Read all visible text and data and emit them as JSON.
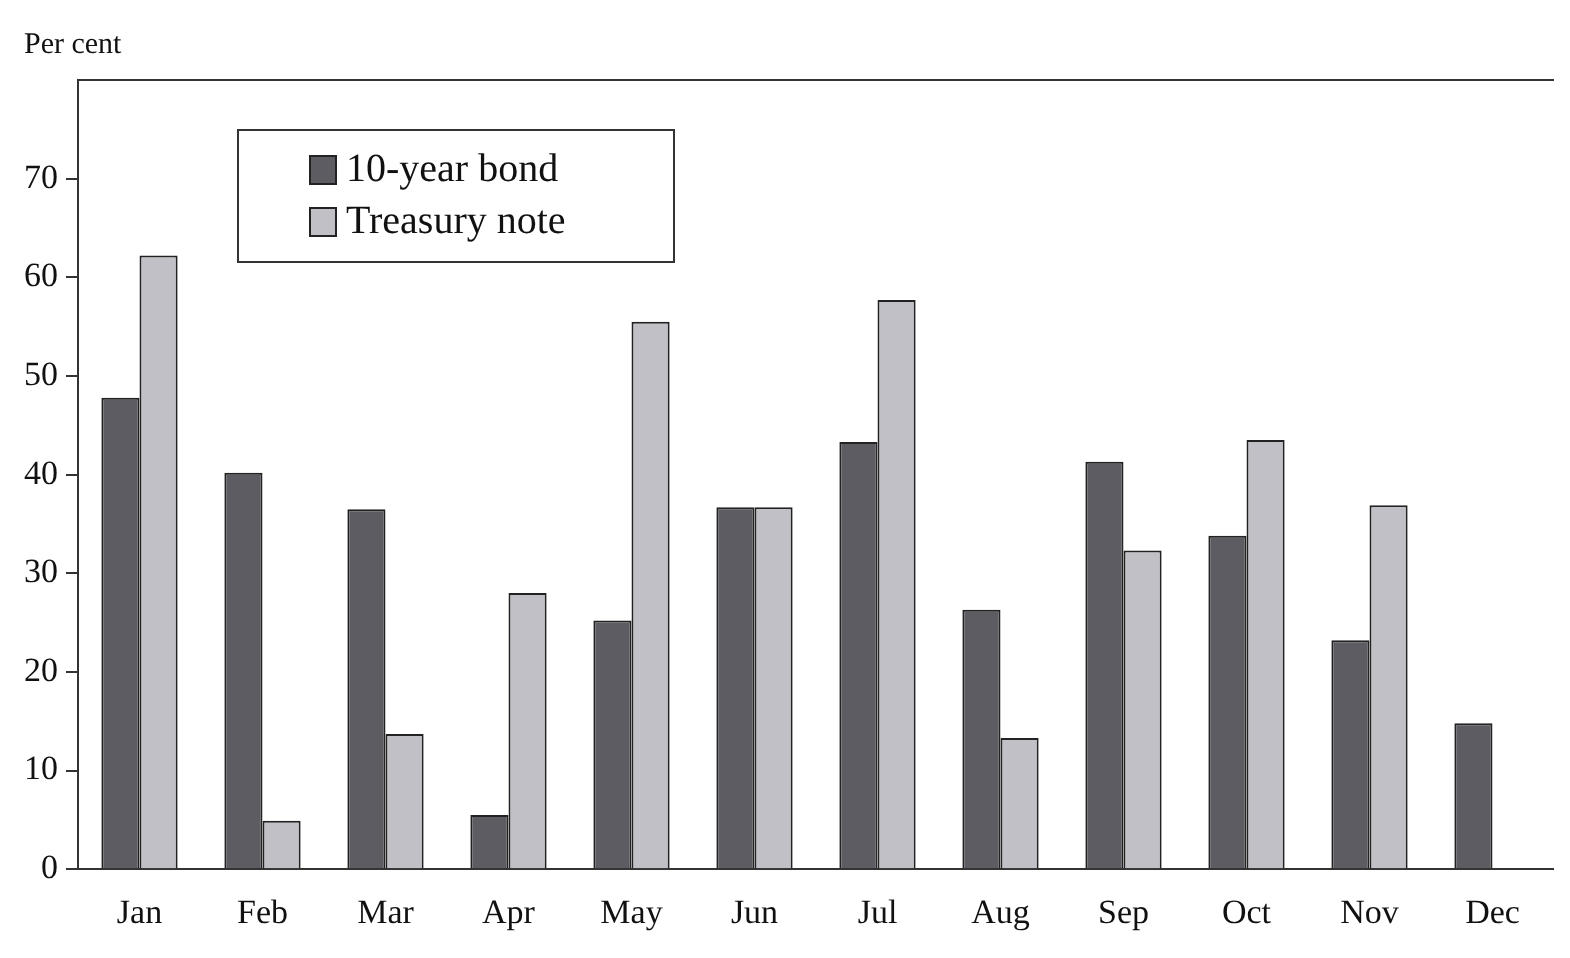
{
  "chart_data": {
    "type": "bar",
    "ylabel": "Per cent",
    "categories": [
      "Jan",
      "Feb",
      "Mar",
      "Apr",
      "May",
      "Jun",
      "Jul",
      "Aug",
      "Sep",
      "Oct",
      "Nov",
      "Dec"
    ],
    "series": [
      {
        "name": "10-year bond",
        "color": "#5c5c62",
        "values": [
          47.8,
          40.2,
          36.5,
          5.5,
          25.2,
          36.7,
          43.3,
          26.3,
          41.3,
          33.8,
          23.2,
          14.8
        ]
      },
      {
        "name": "Treasury note",
        "color": "#c0c0c6",
        "values": [
          62.2,
          4.9,
          13.7,
          28,
          55.5,
          36.7,
          57.7,
          13.3,
          32.3,
          43.5,
          36.9,
          null
        ]
      }
    ],
    "ylim": [
      0,
      80
    ],
    "yticks": [
      0,
      10,
      20,
      30,
      40,
      50,
      60,
      70
    ],
    "grid": false,
    "legend": "top left"
  }
}
